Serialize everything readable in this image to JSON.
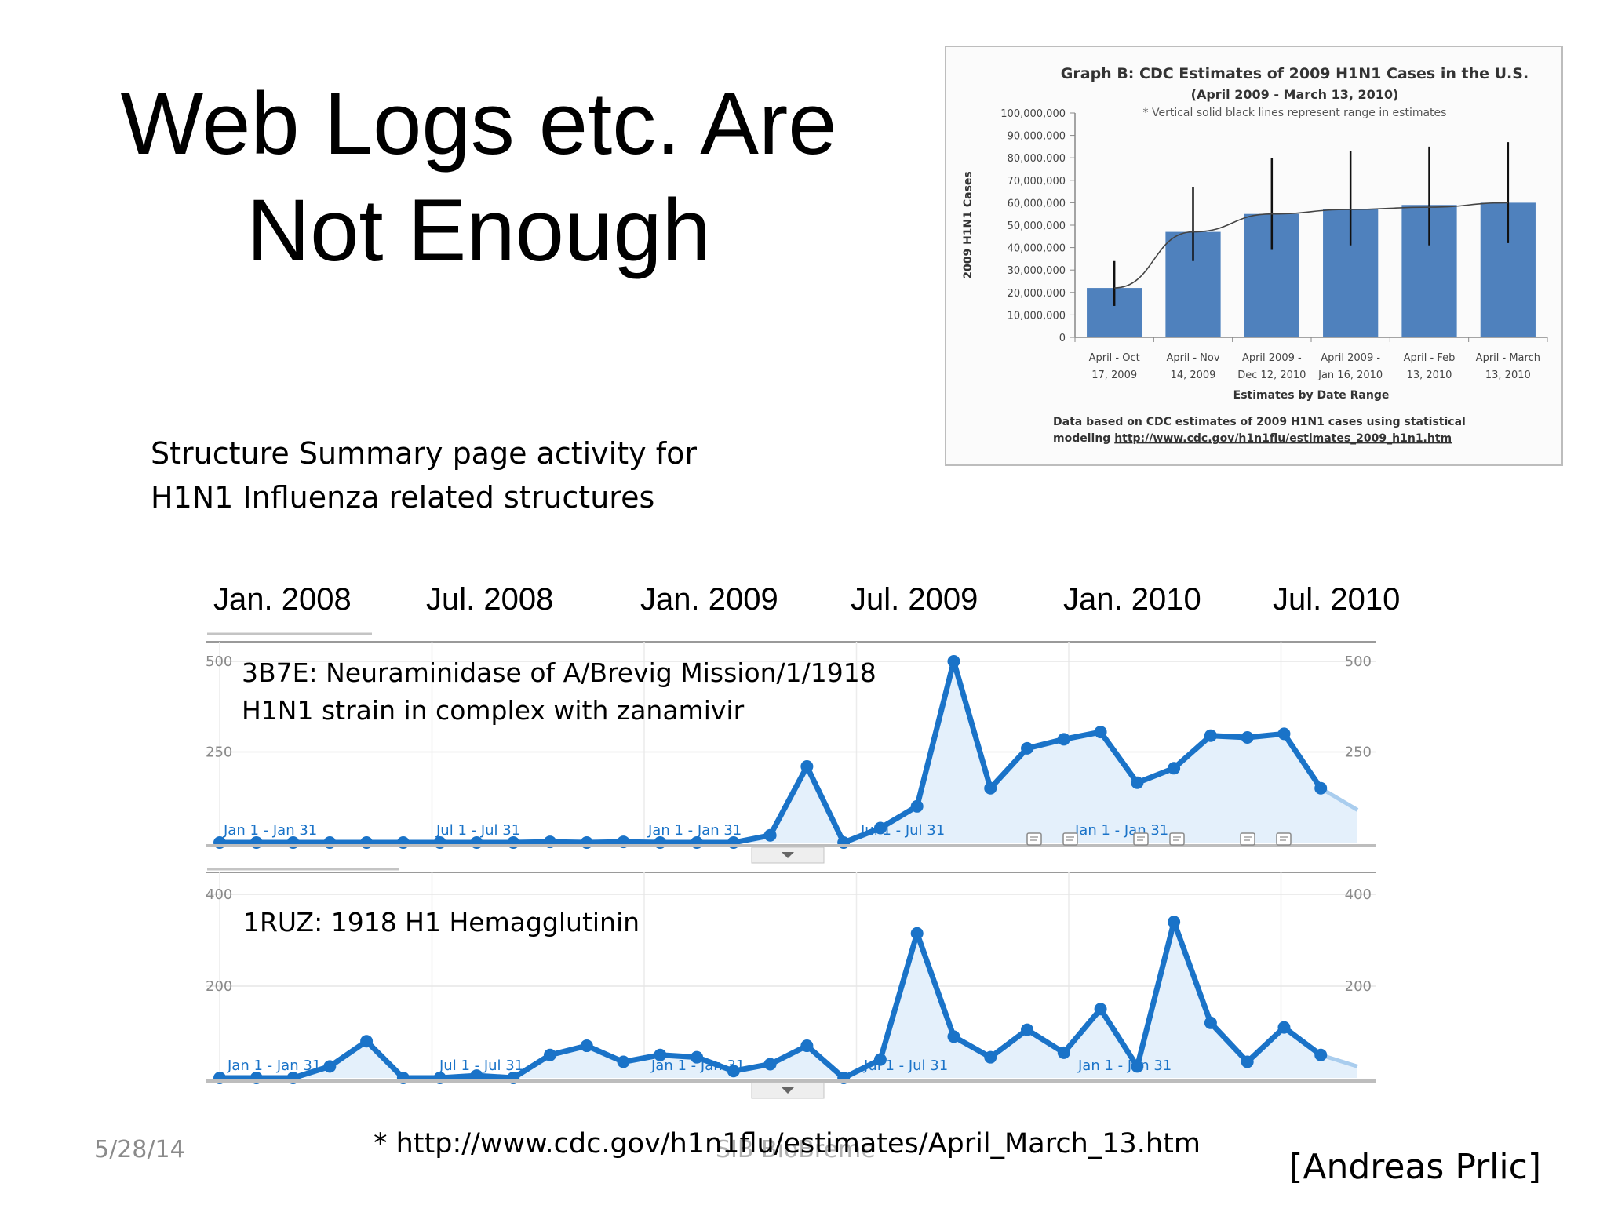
{
  "slide": {
    "title_line1": "Web Logs etc. Are",
    "title_line2": "Not Enough",
    "subtitle_line1": "Structure Summary page activity for",
    "subtitle_line2": "H1N1 Influenza related structures",
    "footnote": "* http://www.cdc.gov/h1n1flu/estimates/April_March_13.htm",
    "footer_ghost": "SIB BioBreme",
    "date": "5/28/14",
    "credit": "[Andreas Prlic]"
  },
  "timeline": {
    "months": [
      "Jan. 2008",
      "Jul. 2008",
      "Jan. 2009",
      "Jul. 2009",
      "Jan. 2010",
      "Jul. 2010"
    ]
  },
  "chart_data": [
    {
      "type": "bar",
      "title": "Graph B: CDC Estimates of 2009 H1N1 Cases in the U.S.",
      "subtitle": "(April 2009 - March 13, 2010)",
      "annotation": "* Vertical solid black lines represent range in estimates",
      "ylabel": "2009 H1N1 Cases",
      "xlabel": "Estimates by Date Range",
      "ylim": [
        0,
        100000000
      ],
      "yticks": [
        "0",
        "10,000,000",
        "20,000,000",
        "30,000,000",
        "40,000,000",
        "50,000,000",
        "60,000,000",
        "70,000,000",
        "80,000,000",
        "90,000,000",
        "100,000,000"
      ],
      "categories": [
        [
          "April - Oct",
          "17, 2009"
        ],
        [
          "April - Nov",
          "14, 2009"
        ],
        [
          "April 2009 -",
          "Dec 12, 2010"
        ],
        [
          "April 2009 -",
          "Jan 16, 2010"
        ],
        [
          "April - Feb",
          "13, 2010"
        ],
        [
          "April - March",
          "13, 2010"
        ]
      ],
      "values": [
        22000000,
        47000000,
        55000000,
        57000000,
        59000000,
        60000000
      ],
      "range_low": [
        14000000,
        34000000,
        39000000,
        41000000,
        41000000,
        42000000
      ],
      "range_high": [
        34000000,
        67000000,
        80000000,
        83000000,
        85000000,
        87000000
      ],
      "trend": [
        22000000,
        47000000,
        55000000,
        57000000,
        58000000,
        60000000
      ],
      "footnote_line1": "Data based on CDC estimates of 2009 H1N1 cases using statistical",
      "footnote_line2_prefix": "modeling ",
      "footnote_link": "http://www.cdc.gov/h1n1flu/estimates_2009_h1n1.htm",
      "bar_color": "#4f81bd"
    },
    {
      "type": "area",
      "title": "3B7E: Neuraminidase of A/Brevig Mission/1/1918 H1N1 strain in complex with zanamivir",
      "title_lines": [
        "3B7E: Neuraminidase of A/Brevig Mission/1/1918",
        "H1N1 strain in complex with zanamivir"
      ],
      "ylim": [
        0,
        500
      ],
      "yticks": [
        "500",
        "250"
      ],
      "xtick_labels": [
        "Jan 1 - Jan 31",
        "Jul 1 - Jul 31",
        "Jan 1 - Jan 31",
        "Jul 1 - Jul 31",
        "Jan 1 - Jan 31"
      ],
      "x": [
        "Jan 2008",
        "Feb 2008",
        "Mar 2008",
        "Apr 2008",
        "May 2008",
        "Jun 2008",
        "Jul 2008",
        "Aug 2008",
        "Sep 2008",
        "Oct 2008",
        "Nov 2008",
        "Dec 2008",
        "Jan 2009",
        "Feb 2009",
        "Mar 2009",
        "Apr 2009",
        "May 2009",
        "Jun 2009",
        "Jul 2009",
        "Aug 2009",
        "Sep 2009",
        "Oct 2009",
        "Nov 2009",
        "Dec 2009",
        "Jan 2010",
        "Feb 2010",
        "Mar 2010",
        "Apr 2010",
        "May 2010",
        "Jun 2010",
        "Jul 2010",
        "Aug 2010"
      ],
      "values": [
        0,
        0,
        0,
        0,
        0,
        0,
        0,
        0,
        0,
        2,
        0,
        2,
        0,
        0,
        0,
        20,
        210,
        0,
        40,
        100,
        500,
        150,
        260,
        285,
        305,
        165,
        205,
        295,
        290,
        300,
        150,
        90
      ],
      "line_color": "#1a73c8",
      "fill_color": "#e4f0fb"
    },
    {
      "type": "area",
      "title": "1RUZ: 1918 H1 Hemagglutinin",
      "ylim": [
        0,
        400
      ],
      "yticks": [
        "400",
        "200"
      ],
      "xtick_labels": [
        "Jan 1 - Jan 31",
        "Jul 1 - Jul 31",
        "Jan 1 - Jan 31",
        "Jul 1 - Jul 31",
        "Jan 1 - Jan 31"
      ],
      "x": [
        "Jan 2008",
        "Feb 2008",
        "Mar 2008",
        "Apr 2008",
        "May 2008",
        "Jun 2008",
        "Jul 2008",
        "Aug 2008",
        "Sep 2008",
        "Oct 2008",
        "Nov 2008",
        "Dec 2008",
        "Jan 2009",
        "Feb 2009",
        "Mar 2009",
        "Apr 2009",
        "May 2009",
        "Jun 2009",
        "Jul 2009",
        "Aug 2009",
        "Sep 2009",
        "Oct 2009",
        "Nov 2009",
        "Dec 2009",
        "Jan 2010",
        "Feb 2010",
        "Mar 2010",
        "Apr 2010",
        "May 2010",
        "Jun 2010",
        "Jul 2010",
        "Aug 2010"
      ],
      "values": [
        0,
        0,
        0,
        25,
        80,
        0,
        0,
        5,
        0,
        50,
        70,
        35,
        50,
        45,
        15,
        30,
        70,
        0,
        40,
        315,
        90,
        45,
        105,
        55,
        150,
        25,
        340,
        120,
        35,
        110,
        50,
        25
      ],
      "line_color": "#1a73c8",
      "fill_color": "#e4f0fb"
    }
  ]
}
